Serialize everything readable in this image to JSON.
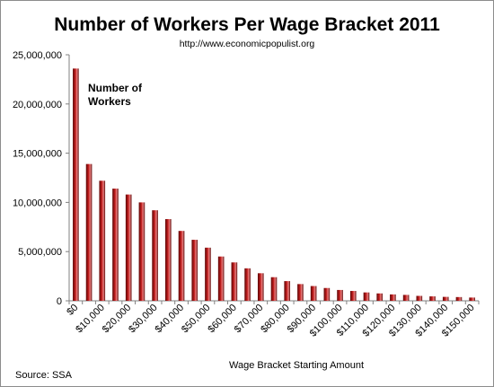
{
  "chart_data": {
    "type": "bar",
    "title": "Number of Workers Per Wage Bracket 2011",
    "subtitle": "http://www.economicpopulist.org",
    "xlabel": "Wage Bracket Starting Amount",
    "ylabel": "",
    "legend": "Number of Workers",
    "source": "Source: SSA",
    "ylim": [
      0,
      25000000
    ],
    "yticks": [
      "0",
      "5,000,000",
      "10,000,000",
      "15,000,000",
      "20,000,000",
      "25,000,000"
    ],
    "xticks": [
      "$0",
      "$10,000",
      "$20,000",
      "$30,000",
      "$40,000",
      "$50,000",
      "$60,000",
      "$70,000",
      "$80,000",
      "$90,000",
      "$100,000",
      "$110,000",
      "$120,000",
      "$130,000",
      "$140,000",
      "$150,000"
    ],
    "categories": [
      "0",
      "5000",
      "10000",
      "15000",
      "20000",
      "25000",
      "30000",
      "35000",
      "40000",
      "45000",
      "50000",
      "55000",
      "60000",
      "65000",
      "70000",
      "75000",
      "80000",
      "85000",
      "90000",
      "95000",
      "100000",
      "105000",
      "110000",
      "115000",
      "120000",
      "125000",
      "130000",
      "135000",
      "140000",
      "145000",
      "150000"
    ],
    "values": [
      23600000,
      13900000,
      12200000,
      11400000,
      10800000,
      10000000,
      9200000,
      8300000,
      7100000,
      6200000,
      5400000,
      4500000,
      3900000,
      3300000,
      2800000,
      2400000,
      2000000,
      1700000,
      1500000,
      1300000,
      1100000,
      1000000,
      850000,
      750000,
      650000,
      600000,
      500000,
      450000,
      400000,
      380000,
      330000
    ],
    "colors": {
      "bar_dark": "#5c0606",
      "bar_mid": "#c62020",
      "bar_light": "#e88080"
    }
  }
}
